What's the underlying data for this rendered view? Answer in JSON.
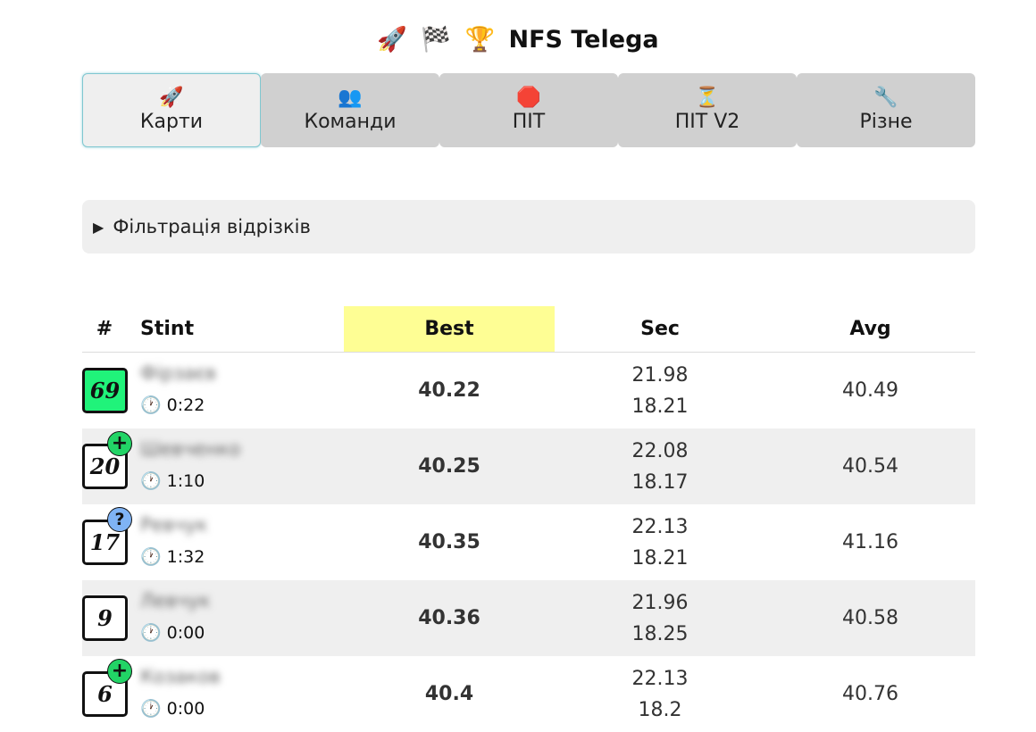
{
  "header": {
    "icons": [
      "🚀",
      "🏁",
      "🏆"
    ],
    "title": "NFS Telega"
  },
  "tabs": [
    {
      "icon": "🚀",
      "label": "Карти",
      "active": true
    },
    {
      "icon": "👥",
      "label": "Команди",
      "active": false
    },
    {
      "icon": "🛑",
      "label": "ПІТ",
      "active": false
    },
    {
      "icon": "⏳",
      "label": "ПІТ V2",
      "active": false
    },
    {
      "icon": "🔧",
      "label": "Різне",
      "active": false
    }
  ],
  "filter": {
    "toggle_glyph": "▶",
    "label": "Фільтрація відрізків"
  },
  "table": {
    "headers": {
      "num": "#",
      "stint": "Stint",
      "best": "Best",
      "sec": "Sec",
      "avg": "Avg"
    },
    "rows": [
      {
        "kart": "69",
        "badge_color": "#20f37a",
        "mark": "",
        "driver": "Фірзаєв",
        "clock_glyph": "🕐",
        "stint_time": "0:22",
        "best": "40.22",
        "sec1": "21.98",
        "sec2": "18.21",
        "avg": "40.49"
      },
      {
        "kart": "20",
        "badge_color": "#ffffff",
        "mark": "+",
        "driver": "Шевченко",
        "clock_glyph": "🕐",
        "stint_time": "1:10",
        "best": "40.25",
        "sec1": "22.08",
        "sec2": "18.17",
        "avg": "40.54"
      },
      {
        "kart": "17",
        "badge_color": "#ffffff",
        "mark": "?",
        "driver": "Ревчук",
        "clock_glyph": "🕐",
        "stint_time": "1:32",
        "best": "40.35",
        "sec1": "22.13",
        "sec2": "18.21",
        "avg": "41.16"
      },
      {
        "kart": "9",
        "badge_color": "#ffffff",
        "mark": "",
        "driver": "Левчук",
        "clock_glyph": "🕐",
        "stint_time": "0:00",
        "best": "40.36",
        "sec1": "21.96",
        "sec2": "18.25",
        "avg": "40.58"
      },
      {
        "kart": "6",
        "badge_color": "#ffffff",
        "mark": "+",
        "driver": "Козаков",
        "clock_glyph": "🕐",
        "stint_time": "0:00",
        "best": "40.4",
        "sec1": "22.13",
        "sec2": "18.2",
        "avg": "40.76"
      }
    ]
  },
  "colors": {
    "best_header_bg": "#fefe94",
    "tab_bg": "#d0d0d0",
    "tab_active_bg": "#efefef",
    "row_alt_bg": "#efefef",
    "mark_plus_bg": "#22d466",
    "mark_question_bg": "#7fb3f5"
  }
}
